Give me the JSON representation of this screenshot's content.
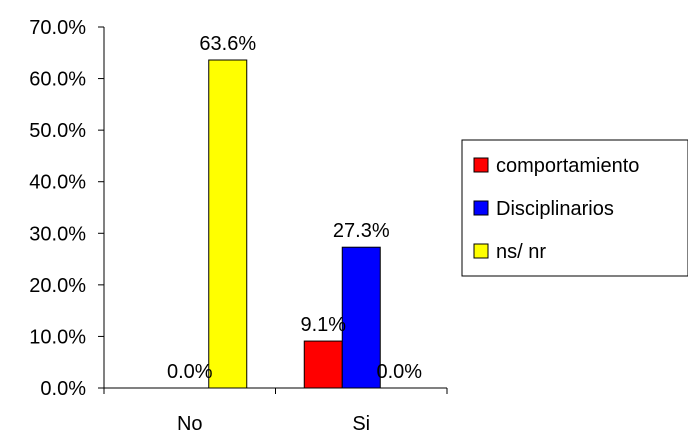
{
  "chart_data": {
    "type": "bar",
    "categories": [
      "No",
      "Si"
    ],
    "series": [
      {
        "name": "comportamiento",
        "color": "#ff0000",
        "values": [
          0.0,
          9.1
        ],
        "labels": [
          "",
          "9.1%"
        ]
      },
      {
        "name": "Disciplinarios",
        "color": "#0000ff",
        "values": [
          0.0,
          27.3
        ],
        "labels": [
          "0.0%",
          "27.3%"
        ]
      },
      {
        "name": "ns/ nr",
        "color": "#ffff00",
        "values": [
          63.6,
          0.0
        ],
        "labels": [
          "63.6%",
          "0.0%"
        ]
      }
    ],
    "y_ticks": [
      "0.0%",
      "10.0%",
      "20.0%",
      "30.0%",
      "40.0%",
      "50.0%",
      "60.0%",
      "70.0%"
    ],
    "ylim": [
      0,
      70
    ],
    "grid": false,
    "legend_position": "right"
  }
}
